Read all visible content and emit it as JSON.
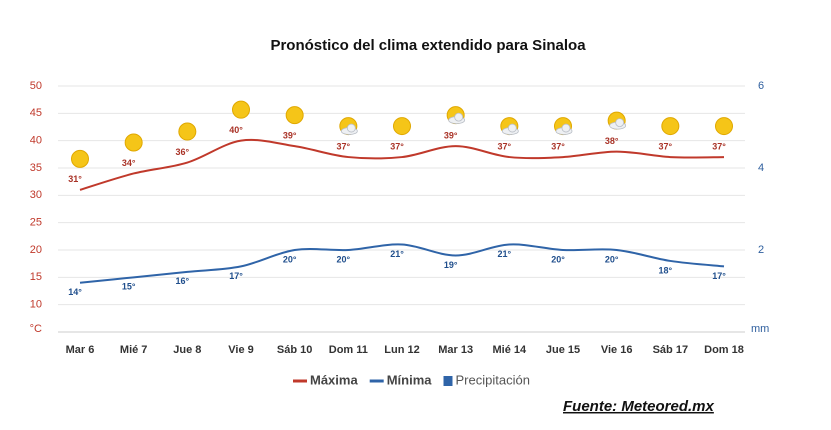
{
  "chart_data": {
    "type": "line",
    "title": "Pronóstico del clima extendido para Sinaloa",
    "categories": [
      "Mar 6",
      "Mié 7",
      "Jue 8",
      "Vie 9",
      "Sáb 10",
      "Dom 11",
      "Lun 12",
      "Mar 13",
      "Mié 14",
      "Jue 15",
      "Vie 16",
      "Sáb 17",
      "Dom 18"
    ],
    "series": [
      {
        "name": "Máxima",
        "color": "#c0392b",
        "values": [
          31,
          34,
          36,
          40,
          39,
          37,
          37,
          39,
          37,
          37,
          38,
          37,
          37
        ],
        "value_labels": [
          "31°",
          "34°",
          "36°",
          "40°",
          "39°",
          "37°",
          "37°",
          "39°",
          "37°",
          "37°",
          "38°",
          "37°",
          "37°"
        ]
      },
      {
        "name": "Mínima",
        "color": "#2f64a8",
        "values": [
          14,
          15,
          16,
          17,
          20,
          20,
          21,
          19,
          21,
          20,
          20,
          18,
          17
        ],
        "value_labels": [
          "14°",
          "15°",
          "16°",
          "17°",
          "20°",
          "20°",
          "21°",
          "19°",
          "21°",
          "20°",
          "20°",
          "18°",
          "17°"
        ]
      },
      {
        "name": "Precipitación",
        "color": "#2f64a8",
        "axis": "y2",
        "values": [
          null,
          null,
          null,
          null,
          null,
          null,
          null,
          null,
          null,
          null,
          null,
          null,
          null
        ]
      }
    ],
    "ylabel": "°C",
    "ylim": [
      5,
      50
    ],
    "yticks": [
      10,
      15,
      20,
      25,
      30,
      35,
      40,
      45,
      50
    ],
    "y2label": "mm",
    "y2lim": [
      0,
      6
    ],
    "y2ticks": [
      2,
      4,
      6
    ],
    "grid": true,
    "legend": "bottom",
    "source": "Fuente: Meteored.mx"
  }
}
